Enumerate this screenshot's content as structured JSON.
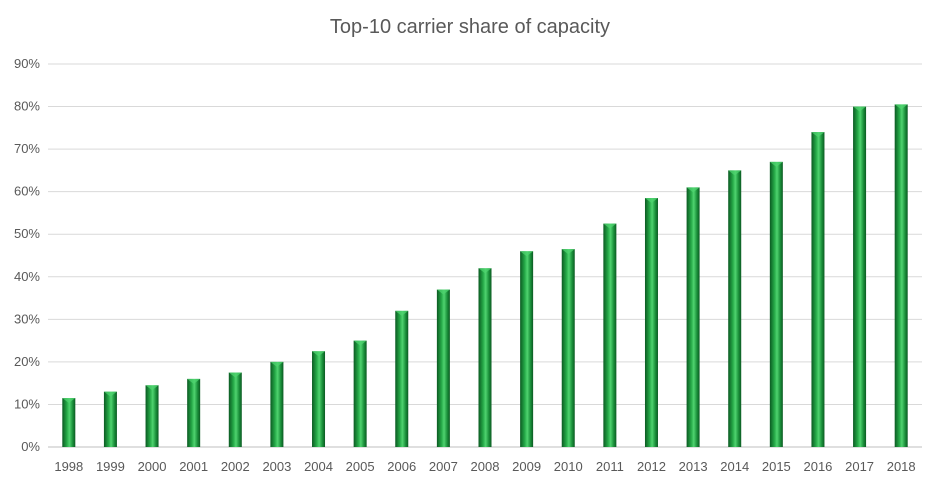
{
  "chart_data": {
    "type": "bar",
    "title": "Top-10 carrier share of capacity",
    "xlabel": "",
    "ylabel": "",
    "categories": [
      "1998",
      "1999",
      "2000",
      "2001",
      "2002",
      "2003",
      "2004",
      "2005",
      "2006",
      "2007",
      "2008",
      "2009",
      "2010",
      "2011",
      "2012",
      "2013",
      "2014",
      "2015",
      "2016",
      "2017",
      "2018"
    ],
    "values": [
      11.5,
      13,
      14.5,
      16,
      17.5,
      20,
      22.5,
      25,
      32,
      37,
      42,
      46,
      46.5,
      52.5,
      58.5,
      61,
      65,
      67,
      74,
      80,
      80.5
    ],
    "ylim": [
      0,
      90
    ],
    "yticks": [
      "0%",
      "10%",
      "20%",
      "30%",
      "40%",
      "50%",
      "60%",
      "70%",
      "80%",
      "90%"
    ],
    "grid": true,
    "legend": "none",
    "bar_color": "#1a8f3a",
    "bar_highlight": "#4fd36f",
    "bar_shadow": "#0b5a22"
  }
}
